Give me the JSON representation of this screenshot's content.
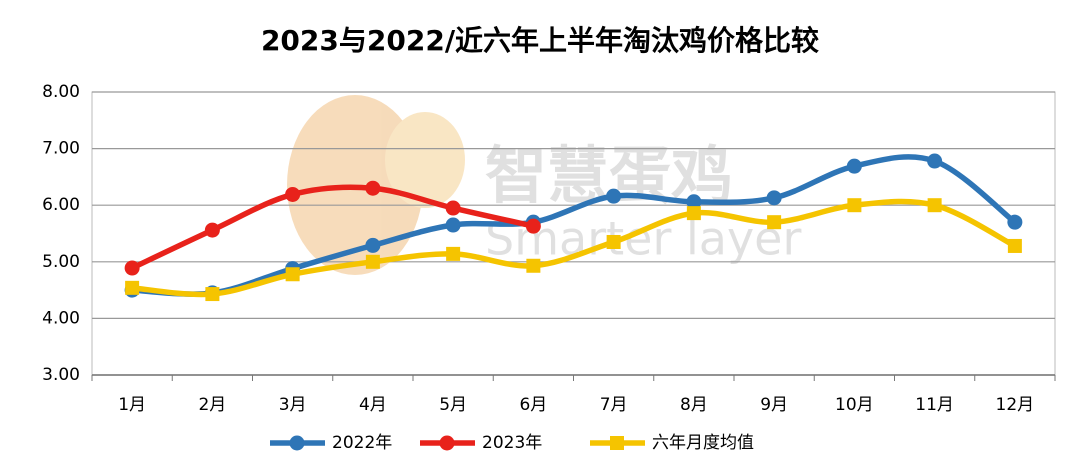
{
  "chart_data": {
    "type": "line",
    "title": "2023与2022/近六年上半年淘汰鸡价格比较",
    "watermark": [
      "智慧蛋鸡",
      "Smarter layer"
    ],
    "categories": [
      "1月",
      "2月",
      "3月",
      "4月",
      "5月",
      "6月",
      "7月",
      "8月",
      "9月",
      "10月",
      "11月",
      "12月"
    ],
    "series": [
      {
        "name": "2022年",
        "color": "#2e75b6",
        "marker": "circle",
        "values": [
          4.5,
          4.45,
          4.88,
          5.29,
          5.65,
          5.7,
          6.16,
          6.06,
          6.13,
          6.69,
          6.78,
          5.7
        ]
      },
      {
        "name": "2023年",
        "color": "#e8221b",
        "marker": "circle",
        "values": [
          4.89,
          5.56,
          6.19,
          6.3,
          5.95,
          5.63,
          null,
          null,
          null,
          null,
          null,
          null
        ]
      },
      {
        "name": "六年月度均值",
        "color": "#f5c400",
        "marker": "square",
        "values": [
          4.54,
          4.43,
          4.78,
          5.0,
          5.14,
          4.93,
          5.35,
          5.86,
          5.7,
          6.0,
          6.0,
          5.28
        ]
      }
    ],
    "ylim": [
      3,
      8
    ],
    "yticks": [
      {
        "value": 3,
        "label": "3.00"
      },
      {
        "value": 4,
        "label": "4.00"
      },
      {
        "value": 5,
        "label": "5.00"
      },
      {
        "value": 6,
        "label": "6.00"
      },
      {
        "value": 7,
        "label": "7.00"
      },
      {
        "value": 8,
        "label": "8.00"
      }
    ],
    "grid": true,
    "smooth": true,
    "legend": "bottom"
  }
}
